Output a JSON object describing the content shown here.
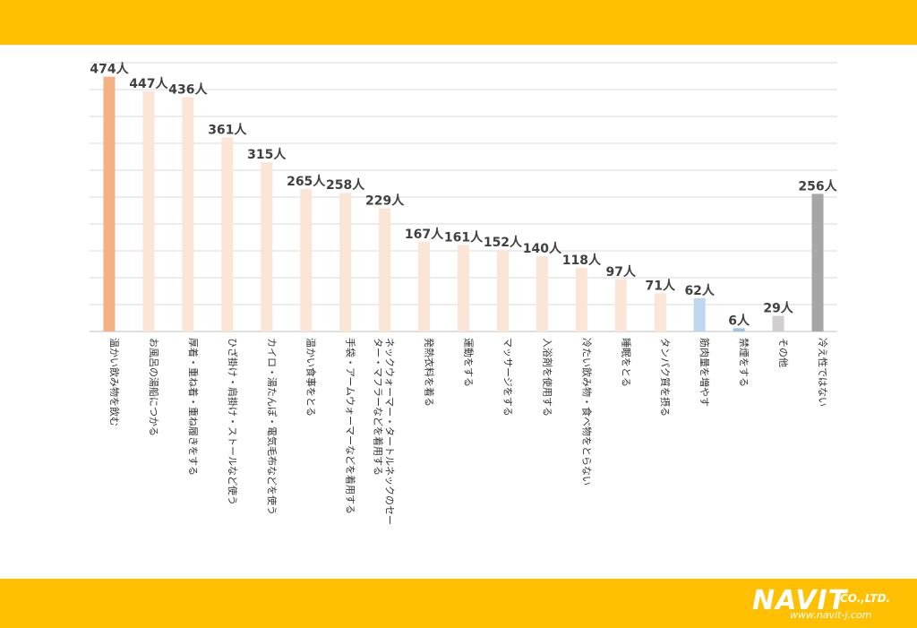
{
  "chart_data": {
    "type": "bar",
    "categories": [
      "温かい飲み物を飲む",
      "お風呂の湯船につかる",
      "厚着・重ね着・重ね履きをする",
      "ひざ掛け・肩掛け・ストールなど使う",
      "カイロ・湯たんぽ・電気毛布などを使う",
      "温かい食事をとる",
      "手袋・アームウォーマーなどを着用する",
      "ネックウォーマー・タートルネックのセーター・マフラーなどを着用する",
      "発熱衣料を着る",
      "運動をする",
      "マッサージをする",
      "入浴剤を使用する",
      "冷たい飲み物・食べ物をとらない",
      "睡眠をとる",
      "タンパク質を摂る",
      "筋肉量を増やす",
      "禁煙をする",
      "その他",
      "冷え性ではない"
    ],
    "category_lines": [
      [
        "温かい飲み物を飲む"
      ],
      [
        "お風呂の湯船につかる"
      ],
      [
        "厚着・重ね着・重ね履きをする"
      ],
      [
        "ひざ掛け・肩掛け・ストールなど使う"
      ],
      [
        "カイロ・湯たんぽ・電気毛布などを使う"
      ],
      [
        "温かい食事をとる"
      ],
      [
        "手袋・アームウォーマーなどを着用する"
      ],
      [
        "ネックウォーマー・タートルネックのセー",
        "ター・マフラーなどを着用する"
      ],
      [
        "発熱衣料を着る"
      ],
      [
        "運動をする"
      ],
      [
        "マッサージをする"
      ],
      [
        "入浴剤を使用する"
      ],
      [
        "冷たい飲み物・食べ物をとらない"
      ],
      [
        "睡眠をとる"
      ],
      [
        "タンパク質を摂る"
      ],
      [
        "筋肉量を増やす"
      ],
      [
        "禁煙をする"
      ],
      [
        "その他"
      ],
      [
        "冷え性ではない"
      ]
    ],
    "values": [
      474,
      447,
      436,
      361,
      315,
      265,
      258,
      229,
      167,
      161,
      152,
      140,
      118,
      97,
      71,
      62,
      6,
      29,
      256
    ],
    "data_labels": [
      "474人",
      "447人",
      "436人",
      "361人",
      "315人",
      "265人",
      "258人",
      "229人",
      "167人",
      "161人",
      "152人",
      "140人",
      "118人",
      "97人",
      "71人",
      "62人",
      "6人",
      "29人",
      "256人"
    ],
    "colors": [
      "#f4b183",
      "#fbe5d6",
      "#fbe5d6",
      "#fbe5d6",
      "#fbe5d6",
      "#fbe5d6",
      "#fbe5d6",
      "#fbe5d6",
      "#fbe5d6",
      "#fbe5d6",
      "#fbe5d6",
      "#fbe5d6",
      "#fbe5d6",
      "#fbe5d6",
      "#fbe5d6",
      "#bdd7ee",
      "#9dc3e6",
      "#d0cece",
      "#a6a6a6"
    ],
    "ylim": [
      0,
      500
    ],
    "grid": true,
    "grid_color": "#d9d9d9",
    "axis_color": "#bfbfbf"
  },
  "brand": {
    "mark": "NAVIT",
    "suffix": "CO.,LTD.",
    "url": "www.navit-j.com",
    "band_color": "#fec000"
  }
}
